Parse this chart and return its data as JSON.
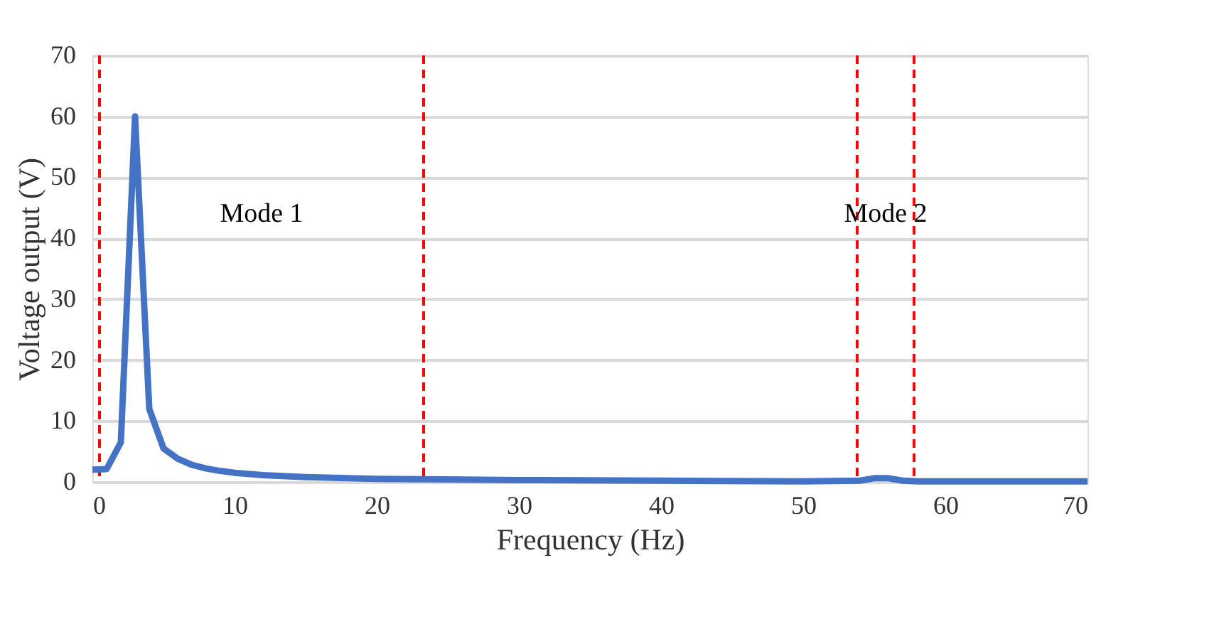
{
  "chart_data": {
    "type": "line",
    "xlabel": "Frequency (Hz)",
    "ylabel": "Voltage output (V)",
    "x": [
      0,
      1,
      2,
      3,
      4,
      5,
      6,
      7,
      8,
      9,
      10,
      12,
      15,
      20,
      25,
      30,
      40,
      50,
      54,
      55,
      56,
      57,
      58,
      70
    ],
    "series": [
      {
        "color": "#4472c4",
        "values": [
          2,
          2.1,
          6.5,
          60,
          12,
          5.5,
          3.8,
          2.8,
          2.2,
          1.8,
          1.5,
          1.1,
          0.8,
          0.5,
          0.4,
          0.3,
          0.2,
          0.1,
          0.2,
          0.6,
          0.6,
          0.2,
          0.1,
          0.1
        ]
      }
    ],
    "xlim": [
      0,
      70
    ],
    "xticks": [
      0,
      10,
      20,
      30,
      40,
      50,
      60,
      70
    ],
    "ylim": [
      0,
      70
    ],
    "yticks": [
      0,
      10,
      20,
      30,
      40,
      50,
      60,
      70
    ],
    "grid": "y",
    "marker": "none",
    "line_style": "solid",
    "ref_lines": [
      {
        "axis": "x",
        "value": 0.5,
        "color": "#ff0000",
        "line_style": "dashed"
      },
      {
        "axis": "x",
        "value": 23.3,
        "color": "#ff0000",
        "line_style": "dashed"
      },
      {
        "axis": "x",
        "value": 53.8,
        "color": "#ff0000",
        "line_style": "dashed"
      },
      {
        "axis": "x",
        "value": 57.8,
        "color": "#ff0000",
        "line_style": "dashed"
      }
    ],
    "annotations": [
      "Mode 1",
      "Mode 2"
    ]
  }
}
